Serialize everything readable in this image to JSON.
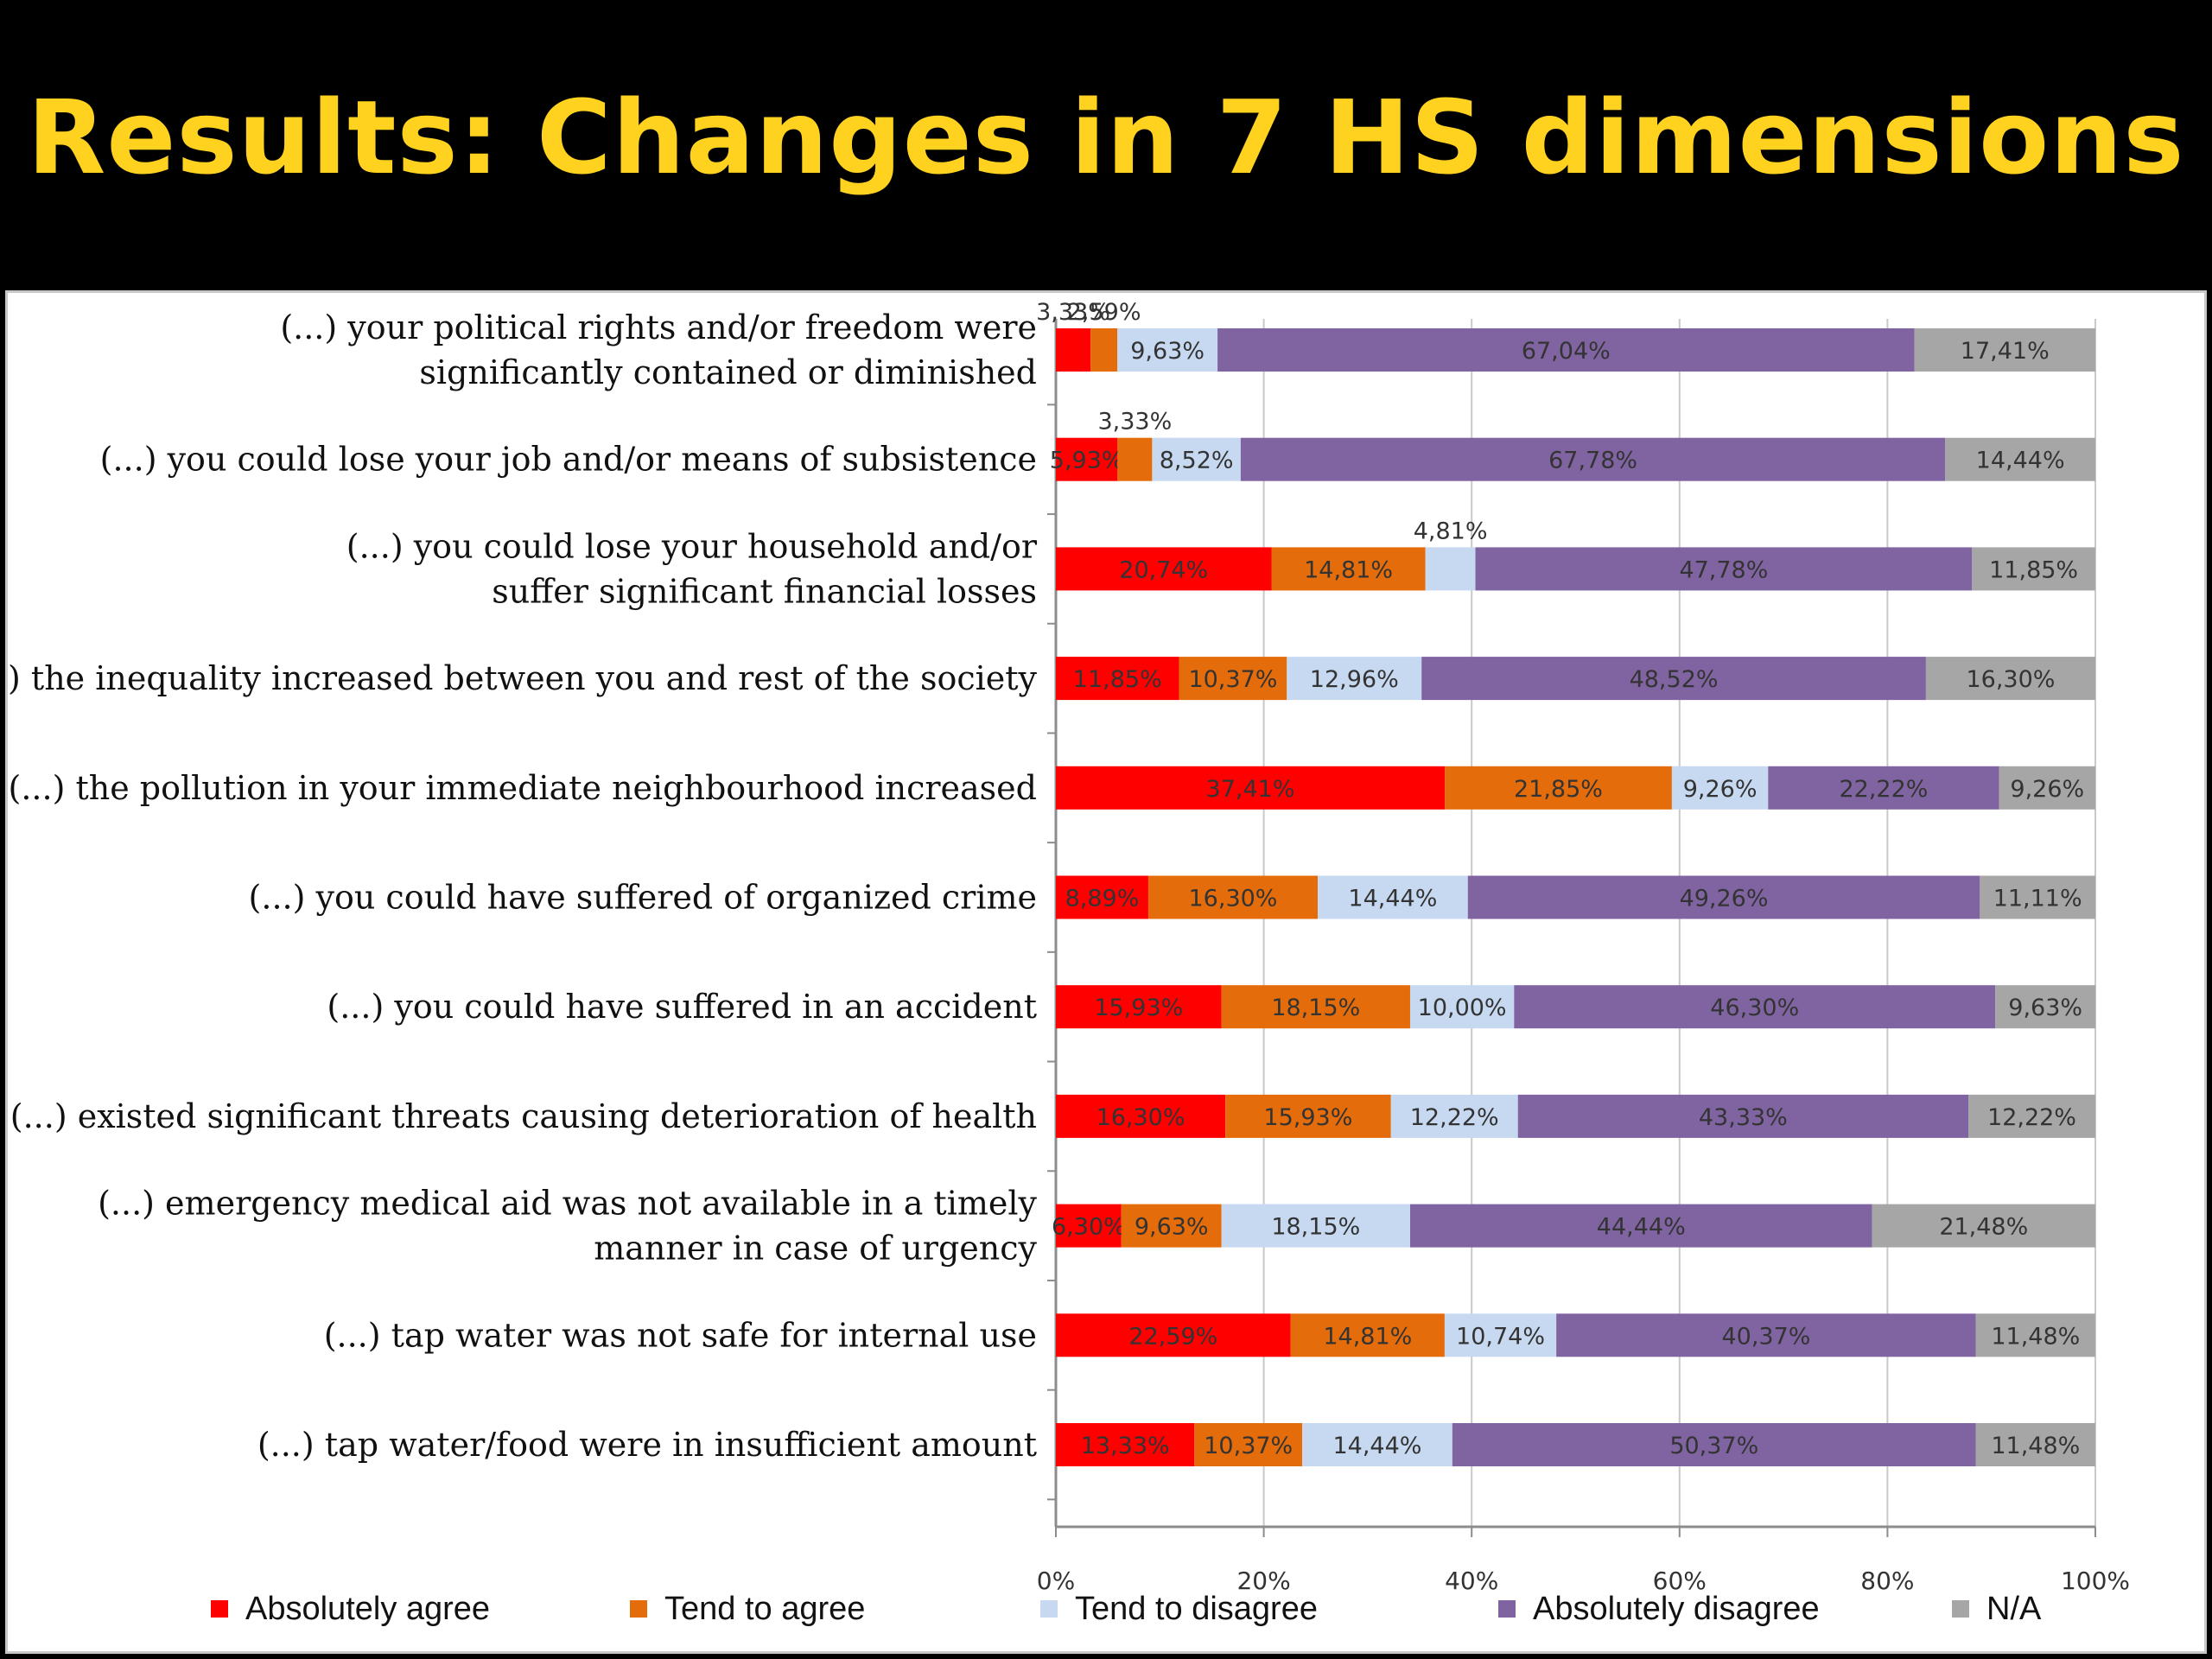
{
  "slide": {
    "title": "Results: Changes in 7 HS dimensions"
  },
  "chart_data": {
    "type": "bar",
    "orientation": "horizontal",
    "stacked": true,
    "percent_scale": true,
    "xlim": [
      0,
      100
    ],
    "x_ticks": [
      "0%",
      "20%",
      "40%",
      "60%",
      "80%",
      "100%"
    ],
    "grid": "vertical",
    "legend_position": "bottom",
    "categories": [
      [
        "(...) your political rights and/or freedom were",
        "significantly contained or diminished"
      ],
      [
        "(...) you could lose your job and/or means of subsistence"
      ],
      [
        "(...) you could lose your household and/or",
        "suffer significant financial losses"
      ],
      [
        "(...) the inequality increased between you and rest of the society"
      ],
      [
        "(...) the pollution in your immediate neighbourhood increased"
      ],
      [
        "(...) you could have suffered of organized crime"
      ],
      [
        "(...) you could have suffered in an accident"
      ],
      [
        "(...) existed significant threats causing deterioration of health"
      ],
      [
        "(...) emergency medical aid was not available in a timely",
        "manner in case of urgency"
      ],
      [
        "(...) tap water was not safe for internal use"
      ],
      [
        "(...) tap water/food were in insufficient amount"
      ]
    ],
    "series": [
      {
        "name": "Absolutely agree",
        "color": "#FF0000",
        "values": [
          3.33,
          5.93,
          20.74,
          11.85,
          37.41,
          8.89,
          15.93,
          16.3,
          6.3,
          22.59,
          13.33
        ],
        "labels": [
          "3,33%",
          "5,93%",
          "20,74%",
          "11,85%",
          "37,41%",
          "8,89%",
          "15,93%",
          "16,30%",
          "6,30%",
          "22,59%",
          "13,33%"
        ]
      },
      {
        "name": "Tend to agree",
        "color": "#E46C0A",
        "values": [
          2.59,
          3.33,
          14.81,
          10.37,
          21.85,
          16.3,
          18.15,
          15.93,
          9.63,
          14.81,
          10.37
        ],
        "labels": [
          "2,59%",
          "3,33%",
          "14,81%",
          "10,37%",
          "21,85%",
          "16,30%",
          "18,15%",
          "15,93%",
          "9,63%",
          "14,81%",
          "10,37%"
        ]
      },
      {
        "name": "Tend to disagree",
        "color": "#C6D9F1",
        "values": [
          9.63,
          8.52,
          4.81,
          12.96,
          9.26,
          14.44,
          10.0,
          12.22,
          18.15,
          10.74,
          14.44
        ],
        "labels": [
          "9,63%",
          "8,52%",
          "4,81%",
          "12,96%",
          "9,26%",
          "14,44%",
          "10,00%",
          "12,22%",
          "18,15%",
          "10,74%",
          "14,44%"
        ]
      },
      {
        "name": "Absolutely disagree",
        "color": "#8064A2",
        "values": [
          67.04,
          67.78,
          47.78,
          48.52,
          22.22,
          49.26,
          46.3,
          43.33,
          44.44,
          40.37,
          50.37
        ],
        "labels": [
          "67,04%",
          "67,78%",
          "47,78%",
          "48,52%",
          "22,22%",
          "49,26%",
          "46,30%",
          "43,33%",
          "44,44%",
          "40,37%",
          "50,37%"
        ]
      },
      {
        "name": "N/A",
        "color": "#A6A6A6",
        "values": [
          17.41,
          14.44,
          11.85,
          16.3,
          9.26,
          11.11,
          9.63,
          12.22,
          21.48,
          11.48,
          11.48
        ],
        "labels": [
          "17,41%",
          "14,44%",
          "11,85%",
          "16,30%",
          "9,26%",
          "11,11%",
          "9,63%",
          "12,22%",
          "21,48%",
          "11,48%",
          "11,48%"
        ]
      }
    ]
  }
}
